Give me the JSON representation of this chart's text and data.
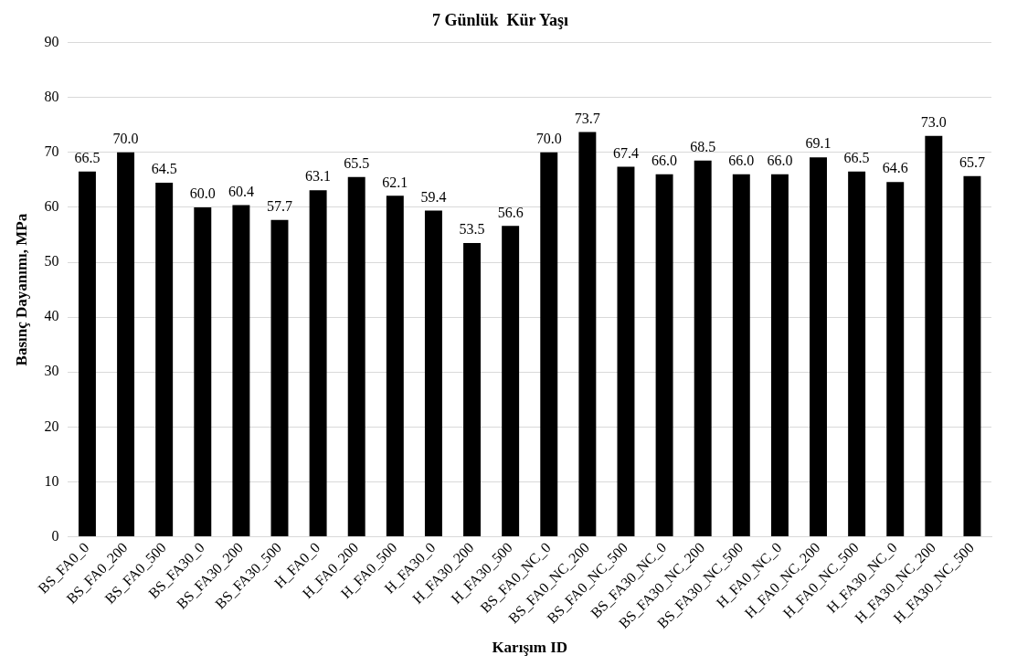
{
  "chart_data": {
    "type": "bar",
    "title": "7 Günlük  Kür Yaşı",
    "xlabel": "Karışım ID",
    "ylabel": "Basınç Dayanımı, MPa",
    "categories": [
      "BS_FA0_0",
      "BS_FA0_200",
      "BS_FA0_500",
      "BS_FA30_0",
      "BS_FA30_200",
      "BS_FA30_500",
      "H_FA0_0",
      "H_FA0_200",
      "H_FA0_500",
      "H_FA30_0",
      "H_FA30_200",
      "H_FA30_500",
      "BS_FA0_NC_0",
      "BS_FA0_NC_200",
      "BS_FA0_NC_500",
      "BS_FA30_NC_0",
      "BS_FA30_NC_200",
      "BS_FA30_NC_500",
      "H_FA0_NC_0",
      "H_FA0_NC_200",
      "H_FA0_NC_500",
      "H_FA30_NC_0",
      "H_FA30_NC_200",
      "H_FA30_NC_500"
    ],
    "values": [
      66.5,
      70.0,
      64.5,
      60.0,
      60.4,
      57.7,
      63.1,
      65.5,
      62.1,
      59.4,
      53.5,
      56.6,
      70.0,
      73.7,
      67.4,
      66.0,
      68.5,
      66.0,
      66.0,
      69.1,
      66.5,
      64.6,
      73.0,
      65.7
    ],
    "value_labels": [
      "66.5",
      "70.0",
      "64.5",
      "60.0",
      "60.4",
      "57.7",
      "63.1",
      "65.5",
      "62.1",
      "59.4",
      "53.5",
      "56.6",
      "70.0",
      "73.7",
      "67.4",
      "66.0",
      "68.5",
      "66.0",
      "66.0",
      "69.1",
      "66.5",
      "64.6",
      "73.0",
      "65.7"
    ],
    "color": "#000000",
    "ylim": [
      0,
      90
    ],
    "yticks": [
      0,
      10,
      20,
      30,
      40,
      50,
      60,
      70,
      80,
      90
    ],
    "grid": "y"
  }
}
